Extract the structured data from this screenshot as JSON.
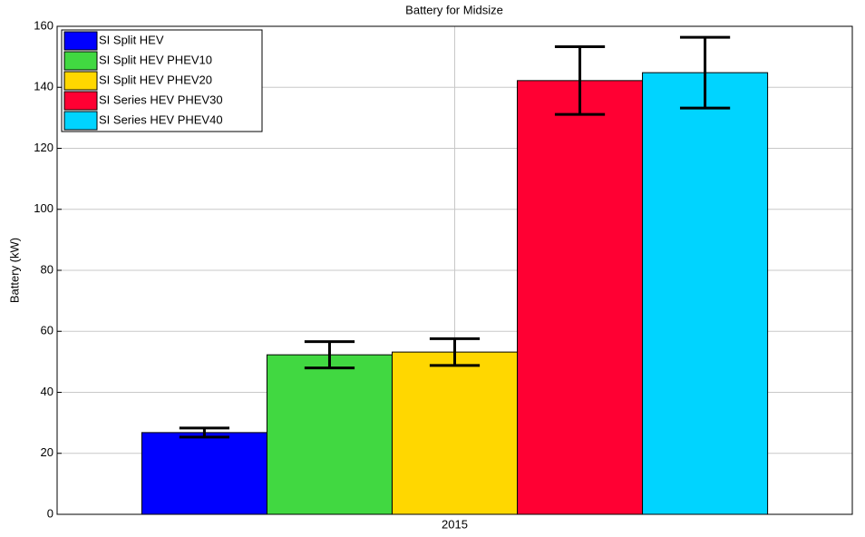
{
  "chart_data": {
    "type": "bar",
    "title": "Battery for Midsize",
    "ylabel": "Battery (kW)",
    "categories": [
      "2015"
    ],
    "series": [
      {
        "name": "SI Split HEV",
        "color": "#0000ff",
        "values": [
          26.8
        ],
        "errors": [
          1.5
        ]
      },
      {
        "name": "SI Split HEV PHEV10",
        "color": "#41d841",
        "values": [
          52.3
        ],
        "errors": [
          4.3
        ]
      },
      {
        "name": "SI Split HEV PHEV20",
        "color": "#ffd700",
        "values": [
          53.2
        ],
        "errors": [
          4.4
        ]
      },
      {
        "name": "SI Series HEV PHEV30",
        "color": "#ff0033",
        "values": [
          142.2
        ],
        "errors": [
          11.1
        ]
      },
      {
        "name": "SI Series HEV PHEV40",
        "color": "#00d4ff",
        "values": [
          144.8
        ],
        "errors": [
          11.6
        ]
      }
    ],
    "ylim": [
      0,
      160
    ],
    "yticks": [
      0,
      20,
      40,
      60,
      80,
      100,
      120,
      140,
      160
    ],
    "grid": true,
    "legend": "upper left"
  }
}
